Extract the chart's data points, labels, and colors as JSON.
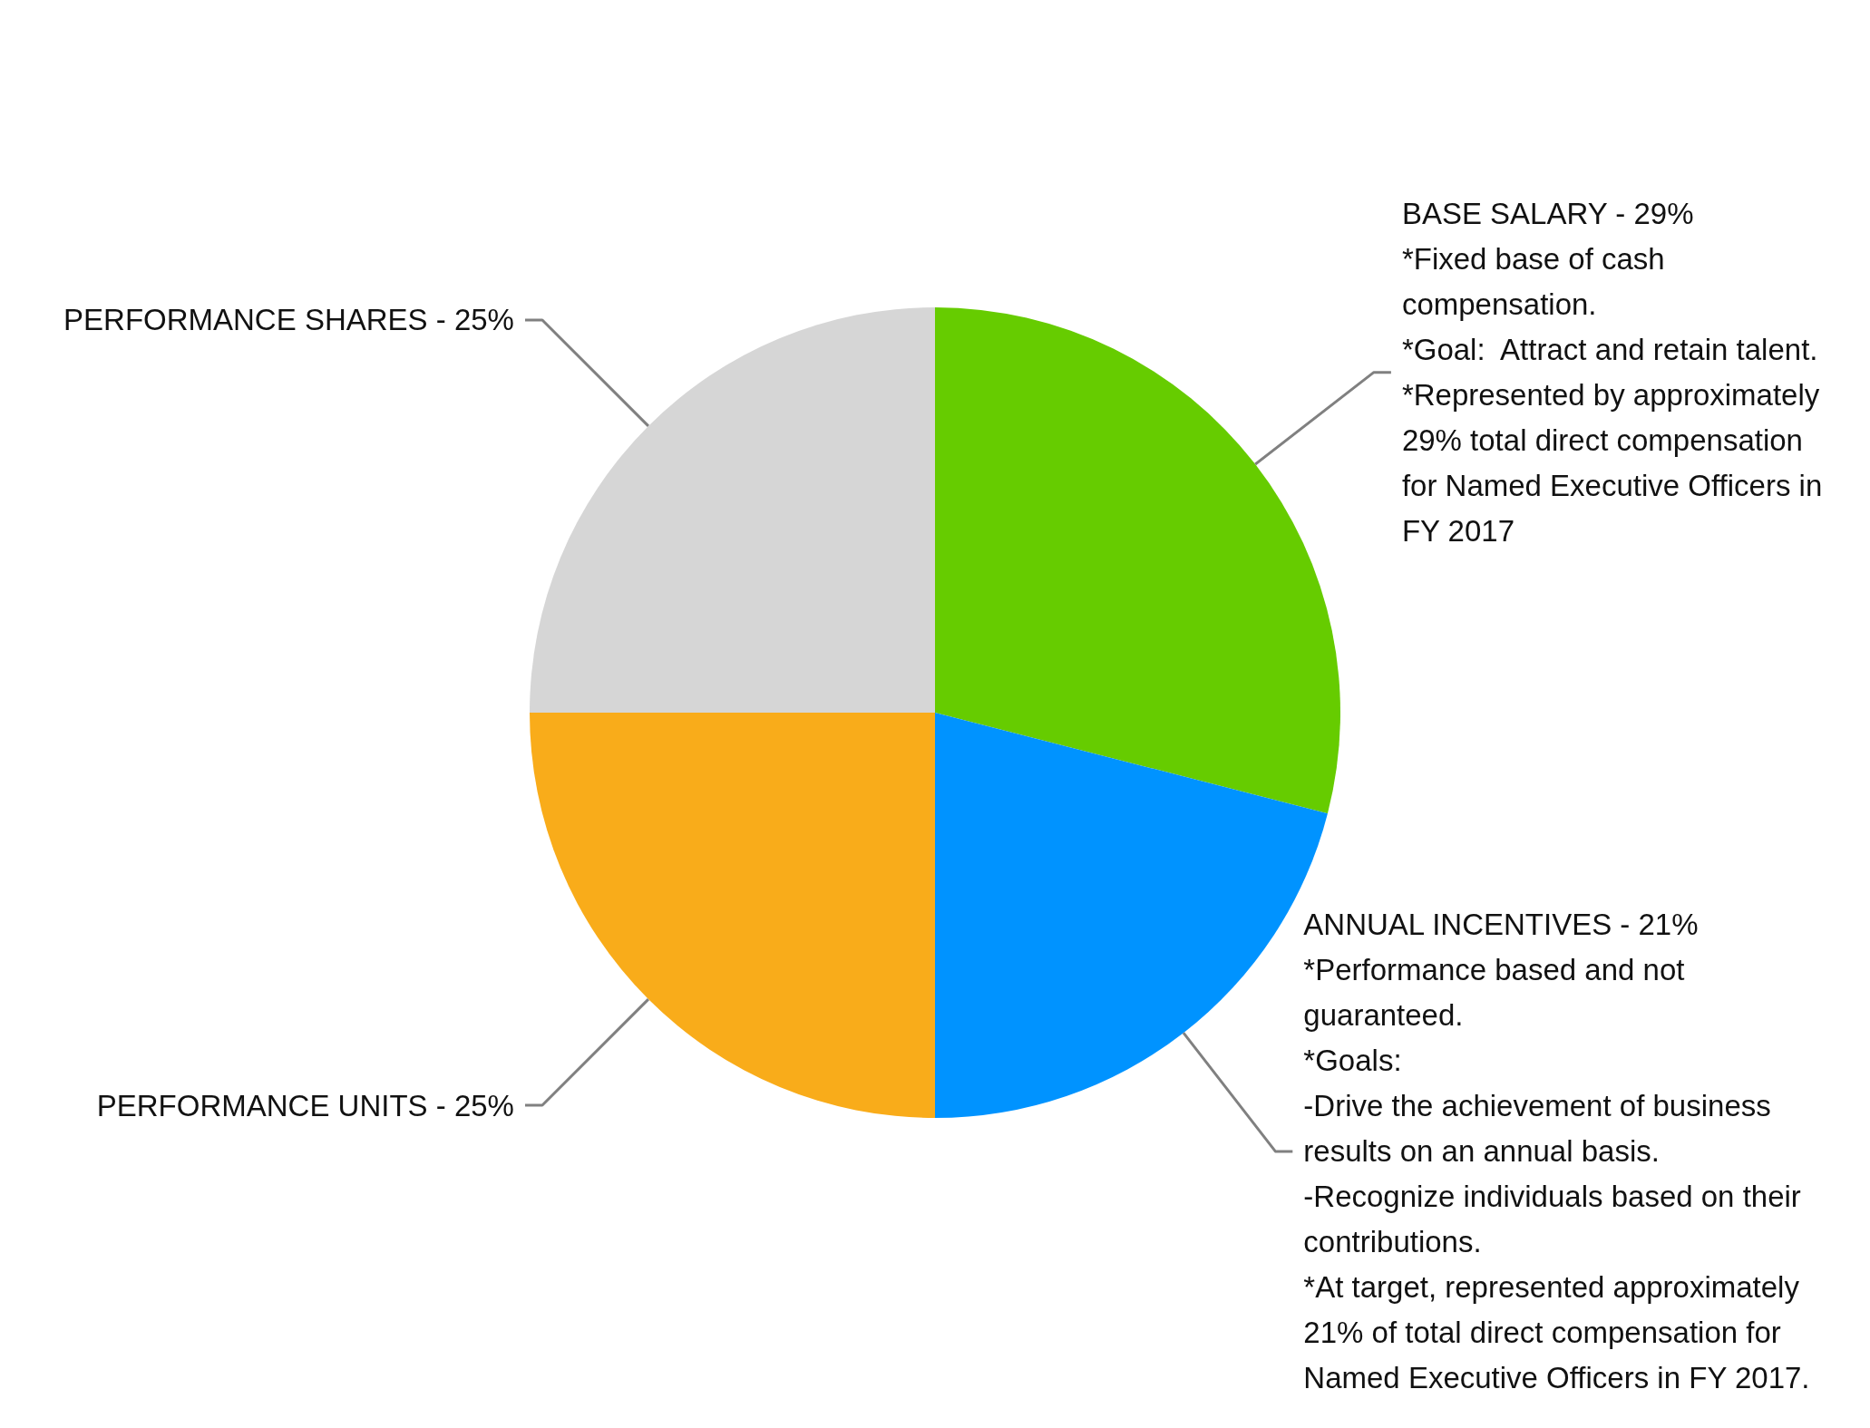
{
  "chart_data": {
    "type": "pie",
    "categories": [
      "BASE SALARY - 29%",
      "ANNUAL INCENTIVES - 21%",
      "PERFORMANCE UNITS - 25%",
      "PERFORMANCE SHARES - 25%"
    ],
    "values": [
      29,
      21,
      25,
      25
    ],
    "colors": [
      "#66cc00",
      "#0093ff",
      "#f9ac1a",
      "#d6d6d6"
    ],
    "annotations": [
      "*Fixed base of cash\ncompensation.\n*Goal:  Attract and retain talent.\n*Represented by approximately\n29% total direct compensation\nfor Named Executive Officers in\nFY 2017",
      "*Performance based and not\nguaranteed.\n*Goals:\n-Drive the achievement of business\nresults on an annual basis.\n-Recognize individuals based on their\ncontributions.\n*At target, represented approximately\n21% of total direct compensation for\nNamed Executive Officers in FY 2017."
    ]
  }
}
